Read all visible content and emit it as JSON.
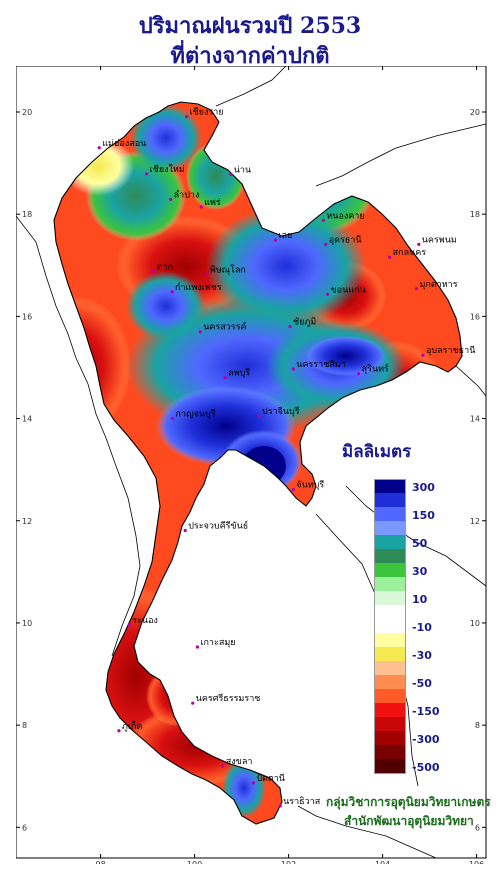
{
  "title_line1": "ปริมาณฝนรวมปี 2553",
  "title_line2": "ที่ต่างจากค่าปกติ",
  "legend": {
    "title": "มิลลิเมตร",
    "steps": [
      {
        "label": "300",
        "color": "#00008b"
      },
      {
        "label": "",
        "color": "#1f2fd8"
      },
      {
        "label": "150",
        "color": "#5068ff"
      },
      {
        "label": "",
        "color": "#7b98ff"
      },
      {
        "label": "50",
        "color": "#1aa3a3"
      },
      {
        "label": "",
        "color": "#2e8b57"
      },
      {
        "label": "30",
        "color": "#3cc43c"
      },
      {
        "label": "",
        "color": "#9cf09c"
      },
      {
        "label": "10",
        "color": "#d8f8d8"
      },
      {
        "label": "",
        "color": "#ffffff"
      },
      {
        "label": "-10",
        "color": "#ffffff"
      },
      {
        "label": "",
        "color": "#ffffa0"
      },
      {
        "label": "-30",
        "color": "#f5e850"
      },
      {
        "label": "",
        "color": "#ffc090"
      },
      {
        "label": "-50",
        "color": "#ff8c50"
      },
      {
        "label": "",
        "color": "#ff5a28"
      },
      {
        "label": "-150",
        "color": "#f01010"
      },
      {
        "label": "",
        "color": "#c80808"
      },
      {
        "label": "-300",
        "color": "#a00000"
      },
      {
        "label": "",
        "color": "#780000"
      },
      {
        "label": "-500",
        "color": "#500000"
      }
    ]
  },
  "axes": {
    "lon_ticks": [
      "98",
      "100",
      "102",
      "104",
      "106"
    ],
    "lat_ticks": [
      "20",
      "18",
      "16",
      "14",
      "12",
      "10",
      "8",
      "6"
    ]
  },
  "credit_line1": "กลุ่มวิชาการอุตุนิยมวิทยาเกษตร",
  "credit_line2": "สำนักพัฒนาอุตุนิยมวิทยา",
  "provinces": [
    {
      "name": "แม่ฮ่องสอน",
      "lon": 97.97,
      "lat": 19.3
    },
    {
      "name": "เชียงใหม่",
      "lon": 98.98,
      "lat": 18.79
    },
    {
      "name": "เชียงราย",
      "lon": 99.83,
      "lat": 19.91
    },
    {
      "name": "น่าน",
      "lon": 100.77,
      "lat": 18.78
    },
    {
      "name": "ลำปาง",
      "lon": 99.49,
      "lat": 18.29
    },
    {
      "name": "แพร่",
      "lon": 100.14,
      "lat": 18.14
    },
    {
      "name": "หนองคาย",
      "lon": 102.74,
      "lat": 17.88
    },
    {
      "name": "เลย",
      "lon": 101.72,
      "lat": 17.49
    },
    {
      "name": "อุดรธานี",
      "lon": 102.79,
      "lat": 17.41
    },
    {
      "name": "นครพนม",
      "lon": 104.77,
      "lat": 17.41
    },
    {
      "name": "สกลนคร",
      "lon": 104.15,
      "lat": 17.16
    },
    {
      "name": "ตาก",
      "lon": 99.13,
      "lat": 16.88
    },
    {
      "name": "พิษณุโลก",
      "lon": 100.26,
      "lat": 16.82
    },
    {
      "name": "มุกดาหาร",
      "lon": 104.72,
      "lat": 16.54
    },
    {
      "name": "ขอนแก่น",
      "lon": 102.83,
      "lat": 16.43
    },
    {
      "name": "กำแพงเพชร",
      "lon": 99.52,
      "lat": 16.48
    },
    {
      "name": "นครสวรรค์",
      "lon": 100.12,
      "lat": 15.7
    },
    {
      "name": "ชัยภูมิ",
      "lon": 102.03,
      "lat": 15.8
    },
    {
      "name": "อุบลราชธานี",
      "lon": 104.86,
      "lat": 15.24
    },
    {
      "name": "ลพบุรี",
      "lon": 100.65,
      "lat": 14.8
    },
    {
      "name": "นครราชสีมา",
      "lon": 102.1,
      "lat": 14.97
    },
    {
      "name": "สุรินทร์",
      "lon": 103.49,
      "lat": 14.88
    },
    {
      "name": "กาญจนบุรี",
      "lon": 99.53,
      "lat": 14.0
    },
    {
      "name": "ปราจีนบุรี",
      "lon": 101.37,
      "lat": 14.05
    },
    {
      "name": "จันทบุรี",
      "lon": 102.1,
      "lat": 12.61
    },
    {
      "name": "ประจวบคีรีขันธ์",
      "lon": 99.8,
      "lat": 11.81
    },
    {
      "name": "ระนอง",
      "lon": 98.61,
      "lat": 9.96
    },
    {
      "name": "เกาะสมุย",
      "lon": 100.06,
      "lat": 9.53
    },
    {
      "name": "ภูเก็ต",
      "lon": 98.39,
      "lat": 7.89
    },
    {
      "name": "นครศรีธรรมราช",
      "lon": 99.96,
      "lat": 8.43
    },
    {
      "name": "สงขลา",
      "lon": 100.6,
      "lat": 7.2
    },
    {
      "name": "ปัตตานี",
      "lon": 101.25,
      "lat": 6.87
    },
    {
      "name": "นราธิวาส",
      "lon": 101.82,
      "lat": 6.42
    }
  ]
}
